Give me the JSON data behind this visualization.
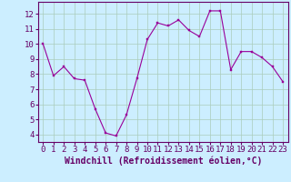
{
  "x": [
    0,
    1,
    2,
    3,
    4,
    5,
    6,
    7,
    8,
    9,
    10,
    11,
    12,
    13,
    14,
    15,
    16,
    17,
    18,
    19,
    20,
    21,
    22,
    23
  ],
  "y": [
    10.0,
    7.9,
    8.5,
    7.7,
    7.6,
    5.7,
    4.1,
    3.9,
    5.3,
    7.7,
    10.3,
    11.4,
    11.2,
    11.6,
    10.9,
    10.5,
    12.2,
    12.2,
    8.3,
    9.5,
    9.5,
    9.1,
    8.5,
    7.5
  ],
  "line_color": "#990099",
  "marker_color": "#990099",
  "bg_color": "#cceeff",
  "grid_color": "#aaccbb",
  "xlabel": "Windchill (Refroidissement éolien,°C)",
  "xlabel_color": "#660066",
  "tick_color": "#660066",
  "axis_color": "#660066",
  "ylim": [
    3.5,
    12.8
  ],
  "xlim": [
    -0.5,
    23.5
  ],
  "yticks": [
    4,
    5,
    6,
    7,
    8,
    9,
    10,
    11,
    12
  ],
  "xticks": [
    0,
    1,
    2,
    3,
    4,
    5,
    6,
    7,
    8,
    9,
    10,
    11,
    12,
    13,
    14,
    15,
    16,
    17,
    18,
    19,
    20,
    21,
    22,
    23
  ],
  "tick_fontsize": 6.5,
  "xlabel_fontsize": 7.0
}
